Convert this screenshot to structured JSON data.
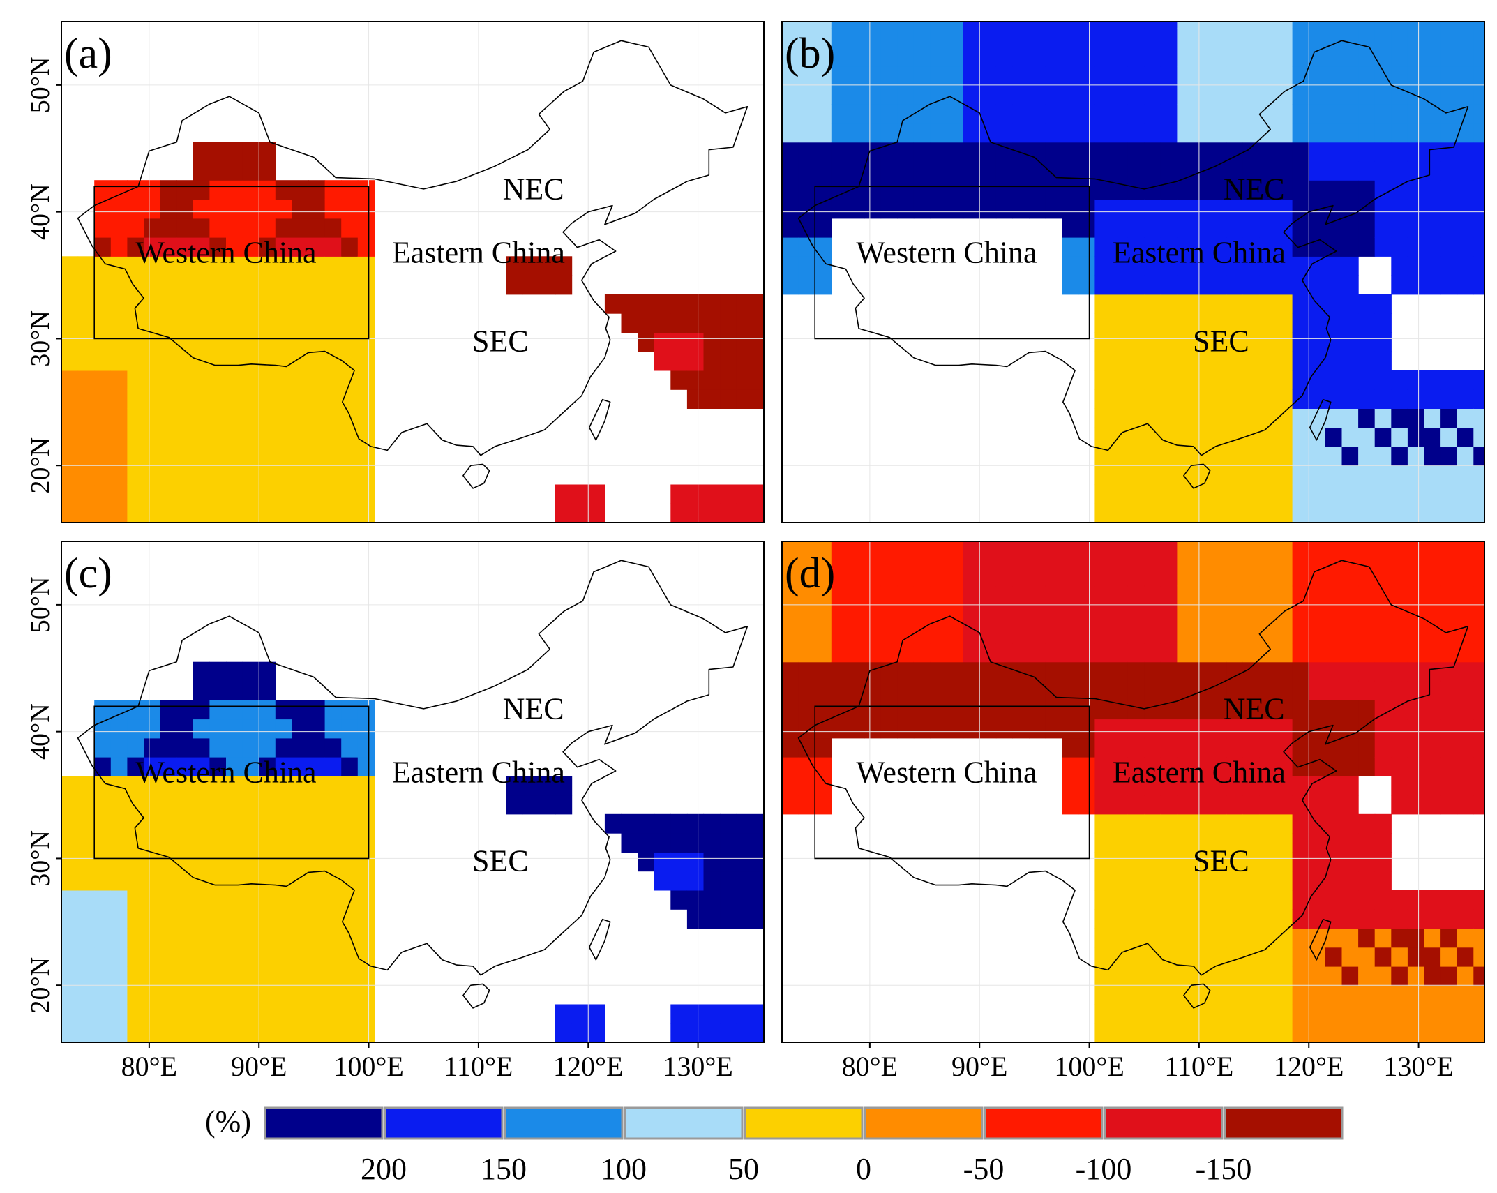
{
  "chart_data": [
    {
      "type": "heatmap",
      "panel_label": "(a)",
      "pattern": "negative",
      "region_labels": [
        "NEC",
        "Western China",
        "Eastern China",
        "SEC"
      ]
    },
    {
      "type": "heatmap",
      "panel_label": "(b)",
      "pattern": "positive",
      "region_labels": [
        "NEC",
        "Western China",
        "Eastern China",
        "SEC"
      ]
    },
    {
      "type": "heatmap",
      "panel_label": "(c)",
      "pattern": "positive",
      "region_labels": [
        "NEC",
        "Western China",
        "Eastern China",
        "SEC"
      ]
    },
    {
      "type": "heatmap",
      "panel_label": "(d)",
      "pattern": "negative",
      "region_labels": [
        "NEC",
        "Western China",
        "Eastern China",
        "SEC"
      ]
    }
  ],
  "axes": {
    "lon_range": [
      72,
      136
    ],
    "lat_range": [
      15.5,
      55
    ],
    "x_ticks": [
      {
        "value": 80,
        "label": "80°E"
      },
      {
        "value": 90,
        "label": "90°E"
      },
      {
        "value": 100,
        "label": "100°E"
      },
      {
        "value": 110,
        "label": "110°E"
      },
      {
        "value": 120,
        "label": "120°E"
      },
      {
        "value": 130,
        "label": "130°E"
      }
    ],
    "y_ticks": [
      {
        "value": 20,
        "label": "20°N"
      },
      {
        "value": 30,
        "label": "30°N"
      },
      {
        "value": 40,
        "label": "40°N"
      },
      {
        "value": 50,
        "label": "50°N"
      }
    ]
  },
  "legend": {
    "unit_label": "(%)",
    "colors": [
      "#00008B",
      "#0A1CF0",
      "#1B8AE8",
      "#A8DCF8",
      "#FCD000",
      "#FF8C00",
      "#FF1A00",
      "#E0101A",
      "#A50F00"
    ],
    "tick_labels": [
      "200",
      "150",
      "100",
      "50",
      "0",
      "-50",
      "-100",
      "-150"
    ]
  },
  "regions": {
    "western_china_box": {
      "lon": [
        75,
        100
      ],
      "lat": [
        30,
        42
      ]
    },
    "label_positions": {
      "NEC": {
        "lon": 115,
        "lat": 41
      },
      "Western China": {
        "lon": 87,
        "lat": 36
      },
      "Eastern China": {
        "lon": 110,
        "lat": 36
      },
      "SEC": {
        "lon": 112,
        "lat": 29
      }
    }
  }
}
